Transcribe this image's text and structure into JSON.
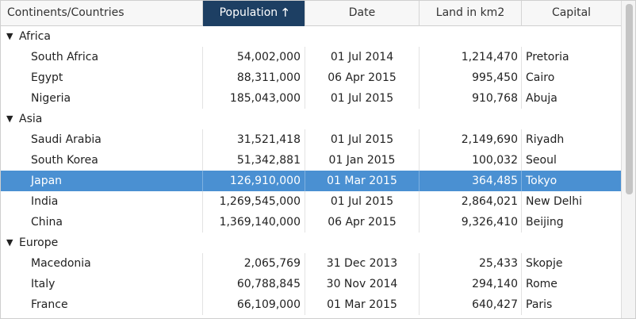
{
  "columns": [
    {
      "label": "Continents/Countries",
      "align": "left"
    },
    {
      "label": "Population",
      "sorted": true,
      "sort_icon": "arrow-up-icon"
    },
    {
      "label": "Date"
    },
    {
      "label": "Land in km2"
    },
    {
      "label": "Capital"
    }
  ],
  "sort_arrow": "🡑",
  "groups": [
    {
      "name": "Africa",
      "toggle": "▼",
      "rows": [
        {
          "country": "South Africa",
          "population": "54,002,000",
          "date": "01 Jul 2014",
          "land": "1,214,470",
          "capital": "Pretoria"
        },
        {
          "country": "Egypt",
          "population": "88,311,000",
          "date": "06 Apr 2015",
          "land": "995,450",
          "capital": "Cairo"
        },
        {
          "country": "Nigeria",
          "population": "185,043,000",
          "date": "01 Jul 2015",
          "land": "910,768",
          "capital": "Abuja"
        }
      ]
    },
    {
      "name": "Asia",
      "toggle": "▼",
      "rows": [
        {
          "country": "Saudi Arabia",
          "population": "31,521,418",
          "date": "01 Jul 2015",
          "land": "2,149,690",
          "capital": "Riyadh"
        },
        {
          "country": "South Korea",
          "population": "51,342,881",
          "date": "01 Jan 2015",
          "land": "100,032",
          "capital": "Seoul"
        },
        {
          "country": "Japan",
          "population": "126,910,000",
          "date": "01 Mar 2015",
          "land": "364,485",
          "capital": "Tokyo",
          "selected": true
        },
        {
          "country": "India",
          "population": "1,269,545,000",
          "date": "01 Jul 2015",
          "land": "2,864,021",
          "capital": "New Delhi"
        },
        {
          "country": "China",
          "population": "1,369,140,000",
          "date": "06 Apr 2015",
          "land": "9,326,410",
          "capital": "Beijing"
        }
      ]
    },
    {
      "name": "Europe",
      "toggle": "▼",
      "rows": [
        {
          "country": "Macedonia",
          "population": "2,065,769",
          "date": "31 Dec 2013",
          "land": "25,433",
          "capital": "Skopje"
        },
        {
          "country": "Italy",
          "population": "60,788,845",
          "date": "30 Nov 2014",
          "land": "294,140",
          "capital": "Rome"
        },
        {
          "country": "France",
          "population": "66,109,000",
          "date": "01 Mar 2015",
          "land": "640,427",
          "capital": "Paris"
        }
      ]
    }
  ],
  "colors": {
    "header_sorted": "#1d3f63",
    "selected_row": "#4a90d2"
  }
}
